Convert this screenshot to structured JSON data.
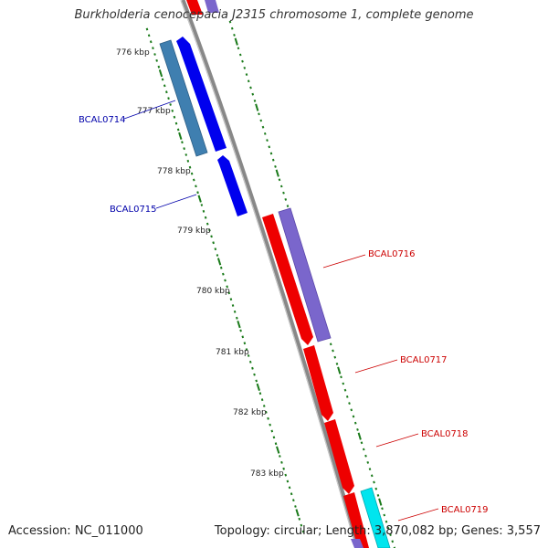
{
  "title": "Burkholderia cenocepacia J2315 chromosome 1, complete genome",
  "footer": {
    "accession": "Accession: NC_011000",
    "summary": "Topology: circular; Length: 3,870,082 bp; Genes: 3,557"
  },
  "colors": {
    "backbone": "#888888",
    "tick": "#1a7a1a",
    "forward_gene": "#0000ee",
    "forward_cds": "#3f7fb0",
    "reverse_gene": "#ee0000",
    "reverse_cds": "#7a66cc",
    "trna": "#00e5ee",
    "label_forward": "#0000aa",
    "label_reverse": "#cc0000"
  },
  "ruler": [
    {
      "label": "776 kbp"
    },
    {
      "label": "777 kbp"
    },
    {
      "label": "778 kbp"
    },
    {
      "label": "779 kbp"
    },
    {
      "label": "780 kbp"
    },
    {
      "label": "781 kbp"
    },
    {
      "label": "782 kbp"
    },
    {
      "label": "783 kbp"
    }
  ],
  "genes": [
    {
      "label": "BCAL0714",
      "strand": "forward"
    },
    {
      "label": "BCAL0715",
      "strand": "forward"
    },
    {
      "label": "BCAL0716",
      "strand": "reverse"
    },
    {
      "label": "BCAL0717",
      "strand": "reverse"
    },
    {
      "label": "BCAL0718",
      "strand": "reverse"
    },
    {
      "label": "BCAL0719",
      "strand": "reverse"
    }
  ]
}
